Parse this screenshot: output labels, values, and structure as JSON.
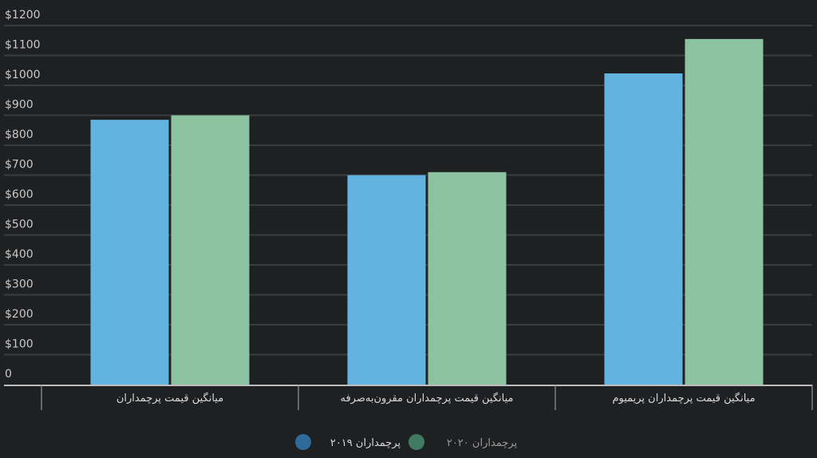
{
  "chart_data": {
    "type": "bar",
    "categories": [
      "میانگین قیمت پرچمداران",
      "میانگین قیمت پرچمداران مقرون‌به‌صرفه",
      "میانگین قیمت پرچمداران پریمیوم"
    ],
    "series": [
      {
        "name": "پرچمداران ۲۰۱۹",
        "values": [
          885,
          700,
          1040
        ],
        "color": "#63b3e0",
        "legend_color": "#2e6a9a"
      },
      {
        "name": "پرچمداران ۲۰۲۰",
        "values": [
          900,
          710,
          1155
        ],
        "color": "#8cc3a1",
        "legend_color": "#3f7a62"
      }
    ],
    "ylim": [
      0,
      1200
    ],
    "yticks": [
      "0",
      "$100",
      "$200",
      "$300",
      "$400",
      "$500",
      "$600",
      "$700",
      "$800",
      "$900",
      "$1000",
      "$1100",
      "$1200"
    ],
    "grid": true,
    "legend_position": "bottom",
    "background": "#1f2022"
  }
}
